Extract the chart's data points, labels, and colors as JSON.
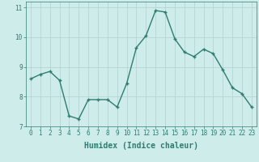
{
  "x": [
    0,
    1,
    2,
    3,
    4,
    5,
    6,
    7,
    8,
    9,
    10,
    11,
    12,
    13,
    14,
    15,
    16,
    17,
    18,
    19,
    20,
    21,
    22,
    23
  ],
  "y": [
    8.6,
    8.75,
    8.85,
    8.55,
    7.35,
    7.25,
    7.9,
    7.9,
    7.9,
    7.65,
    8.45,
    9.65,
    10.05,
    10.9,
    10.85,
    9.95,
    9.5,
    9.35,
    9.6,
    9.45,
    8.9,
    8.3,
    8.1,
    7.65
  ],
  "line_color": "#2e7d6e",
  "marker": "+",
  "marker_size": 3,
  "marker_edge_width": 1.0,
  "line_width": 1.0,
  "xlabel": "Humidex (Indice chaleur)",
  "xlabel_fontsize": 7,
  "background_color": "#ceecea",
  "grid_color": "#b0d0ce",
  "tick_color": "#2e7d6e",
  "label_color": "#2e7d6e",
  "ylim": [
    7.0,
    11.2
  ],
  "xlim": [
    -0.5,
    23.5
  ],
  "yticks": [
    7,
    8,
    9,
    10,
    11
  ],
  "xticks": [
    0,
    1,
    2,
    3,
    4,
    5,
    6,
    7,
    8,
    9,
    10,
    11,
    12,
    13,
    14,
    15,
    16,
    17,
    18,
    19,
    20,
    21,
    22,
    23
  ],
  "xtick_labels": [
    "0",
    "1",
    "2",
    "3",
    "4",
    "5",
    "6",
    "7",
    "8",
    "9",
    "10",
    "11",
    "12",
    "13",
    "14",
    "15",
    "16",
    "17",
    "18",
    "19",
    "20",
    "21",
    "22",
    "23"
  ],
  "tick_fontsize": 5.5,
  "spine_color": "#2e7d6e"
}
